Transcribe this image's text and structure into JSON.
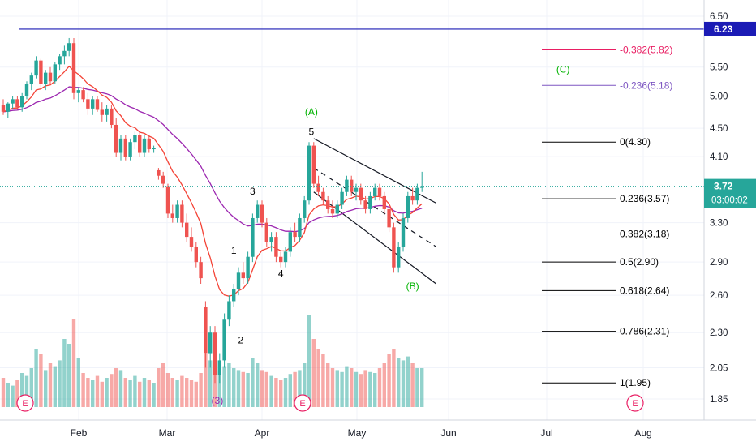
{
  "chart_data": {
    "type": "candlestick",
    "price_axis": {
      "ticks": [
        "6.50",
        "5.50",
        "5.00",
        "4.50",
        "4.10",
        "3.30",
        "2.90",
        "2.60",
        "2.30",
        "2.05",
        "1.85"
      ],
      "scale": "log"
    },
    "time_axis": {
      "ticks": [
        "Feb",
        "Mar",
        "Apr",
        "May",
        "Jun",
        "Jul",
        "Aug"
      ]
    },
    "last_price": {
      "value": "3.72",
      "countdown": "03:00:02",
      "color": "#26a69a"
    },
    "resistance_line": {
      "value": "6.23",
      "color": "#1b1bb5"
    },
    "candles": [
      [
        4.85,
        4.95,
        4.7,
        4.75
      ],
      [
        4.75,
        4.9,
        4.65,
        4.88
      ],
      [
        4.88,
        5.0,
        4.8,
        4.95
      ],
      [
        4.95,
        5.0,
        4.78,
        4.82
      ],
      [
        4.82,
        5.05,
        4.75,
        5.0
      ],
      [
        5.0,
        5.25,
        4.95,
        5.2
      ],
      [
        5.2,
        5.4,
        5.1,
        5.35
      ],
      [
        5.35,
        5.7,
        5.3,
        5.62
      ],
      [
        5.62,
        5.65,
        5.15,
        5.2
      ],
      [
        5.2,
        5.45,
        5.1,
        5.4
      ],
      [
        5.4,
        5.5,
        5.2,
        5.25
      ],
      [
        5.25,
        5.6,
        5.2,
        5.55
      ],
      [
        5.55,
        5.75,
        5.45,
        5.7
      ],
      [
        5.7,
        5.9,
        5.55,
        5.8
      ],
      [
        5.8,
        6.05,
        5.7,
        5.95
      ],
      [
        5.95,
        6.05,
        4.95,
        5.05
      ],
      [
        5.05,
        5.15,
        4.9,
        5.1
      ],
      [
        5.1,
        5.15,
        4.9,
        4.95
      ],
      [
        4.95,
        5.05,
        4.7,
        4.8
      ],
      [
        4.8,
        5.0,
        4.7,
        4.95
      ],
      [
        4.95,
        5.0,
        4.75,
        4.78
      ],
      [
        4.78,
        4.9,
        4.6,
        4.7
      ],
      [
        4.7,
        4.85,
        4.6,
        4.8
      ],
      [
        4.8,
        4.85,
        4.5,
        4.55
      ],
      [
        4.55,
        4.65,
        4.1,
        4.15
      ],
      [
        4.15,
        4.4,
        4.05,
        4.35
      ],
      [
        4.35,
        4.4,
        4.05,
        4.1
      ],
      [
        4.1,
        4.35,
        4.05,
        4.3
      ],
      [
        4.3,
        4.45,
        4.2,
        4.4
      ],
      [
        4.4,
        4.45,
        4.1,
        4.15
      ],
      [
        4.15,
        4.4,
        4.1,
        4.35
      ],
      [
        4.35,
        4.4,
        4.15,
        4.2
      ],
      [
        4.2,
        4.25,
        4.15,
        4.22
      ],
      [
        3.92,
        3.95,
        3.8,
        3.85
      ],
      [
        3.85,
        3.9,
        3.7,
        3.75
      ],
      [
        3.72,
        3.75,
        3.35,
        3.4
      ],
      [
        3.4,
        3.5,
        3.3,
        3.35
      ],
      [
        3.35,
        3.55,
        3.3,
        3.5
      ],
      [
        3.5,
        3.55,
        3.25,
        3.3
      ],
      [
        3.3,
        3.4,
        3.1,
        3.15
      ],
      [
        3.15,
        3.25,
        3.0,
        3.05
      ],
      [
        3.05,
        3.1,
        2.85,
        2.9
      ],
      [
        2.9,
        2.95,
        2.7,
        2.75
      ],
      [
        2.5,
        2.55,
        2.05,
        2.15
      ],
      [
        2.15,
        2.35,
        2.05,
        2.3
      ],
      [
        2.3,
        2.35,
        1.95,
        2.0
      ],
      [
        2.0,
        2.15,
        1.95,
        2.1
      ],
      [
        2.1,
        2.45,
        2.05,
        2.4
      ],
      [
        2.4,
        2.6,
        2.35,
        2.55
      ],
      [
        2.55,
        2.7,
        2.5,
        2.65
      ],
      [
        2.65,
        2.85,
        2.6,
        2.8
      ],
      [
        2.8,
        2.9,
        2.7,
        2.75
      ],
      [
        2.75,
        3.0,
        2.7,
        2.95
      ],
      [
        2.95,
        3.4,
        2.9,
        3.35
      ],
      [
        3.35,
        3.55,
        3.3,
        3.5
      ],
      [
        3.5,
        3.55,
        3.25,
        3.3
      ],
      [
        3.3,
        3.35,
        3.05,
        3.1
      ],
      [
        3.1,
        3.2,
        3.0,
        3.15
      ],
      [
        3.15,
        3.2,
        2.9,
        2.95
      ],
      [
        2.95,
        3.0,
        2.85,
        2.9
      ],
      [
        2.9,
        3.05,
        2.85,
        3.0
      ],
      [
        3.0,
        3.25,
        2.95,
        3.2
      ],
      [
        3.2,
        3.3,
        3.1,
        3.15
      ],
      [
        3.15,
        3.4,
        3.1,
        3.35
      ],
      [
        3.35,
        3.6,
        3.3,
        3.55
      ],
      [
        3.55,
        4.3,
        3.5,
        4.25
      ],
      [
        4.25,
        4.3,
        3.7,
        3.75
      ],
      [
        3.75,
        3.85,
        3.6,
        3.65
      ],
      [
        3.65,
        3.7,
        3.5,
        3.55
      ],
      [
        3.55,
        3.6,
        3.4,
        3.45
      ],
      [
        3.45,
        3.55,
        3.35,
        3.4
      ],
      [
        3.4,
        3.55,
        3.35,
        3.5
      ],
      [
        3.5,
        3.7,
        3.45,
        3.65
      ],
      [
        3.65,
        3.85,
        3.6,
        3.8
      ],
      [
        3.8,
        3.85,
        3.6,
        3.65
      ],
      [
        3.65,
        3.75,
        3.55,
        3.7
      ],
      [
        3.7,
        3.75,
        3.5,
        3.55
      ],
      [
        3.55,
        3.6,
        3.4,
        3.45
      ],
      [
        3.45,
        3.65,
        3.4,
        3.6
      ],
      [
        3.6,
        3.75,
        3.55,
        3.7
      ],
      [
        3.7,
        3.75,
        3.55,
        3.6
      ],
      [
        3.6,
        3.65,
        3.4,
        3.45
      ],
      [
        3.45,
        3.5,
        3.2,
        3.25
      ],
      [
        3.25,
        3.3,
        2.8,
        2.85
      ],
      [
        2.85,
        3.1,
        2.8,
        3.05
      ],
      [
        3.05,
        3.4,
        3.0,
        3.35
      ],
      [
        3.35,
        3.65,
        3.3,
        3.6
      ],
      [
        3.6,
        3.7,
        3.5,
        3.55
      ],
      [
        3.55,
        3.75,
        3.5,
        3.7
      ],
      [
        3.7,
        3.9,
        3.65,
        3.72
      ]
    ],
    "ema_slow": {
      "name": "",
      "color": "#9c27b0"
    },
    "ema_fast": {
      "name": "",
      "color": "#f44336"
    },
    "channel": {
      "upper": [
        [
          66,
          4.35
        ],
        [
          92,
          3.52
        ]
      ],
      "lower": [
        [
          66,
          3.65
        ],
        [
          92,
          2.7
        ]
      ],
      "mid": [
        [
          66,
          3.95
        ],
        [
          92,
          3.05
        ]
      ]
    },
    "wave_labels": [
      {
        "text": "(A)",
        "candle": 65.5,
        "price": 4.7,
        "color": "#00b300"
      },
      {
        "text": "5",
        "candle": 65.5,
        "price": 4.4,
        "color": "#000000"
      },
      {
        "text": "3",
        "candle": 53,
        "price": 3.62,
        "color": "#000000"
      },
      {
        "text": "1",
        "candle": 49,
        "price": 2.98,
        "color": "#000000"
      },
      {
        "text": "4",
        "candle": 59,
        "price": 2.76,
        "color": "#000000"
      },
      {
        "text": "2",
        "candle": 50.5,
        "price": 2.22,
        "color": "#000000"
      },
      {
        "text": "(3)",
        "candle": 45.5,
        "price": 1.82,
        "color": "#9c27b0"
      },
      {
        "text": "(B)",
        "candle": 87,
        "price": 2.65,
        "color": "#00b300"
      },
      {
        "text": "(C)",
        "candle": 119,
        "price": 5.4,
        "color": "#00b300"
      }
    ],
    "fib_levels": [
      {
        "label": "-0.382(5.82)",
        "value": 5.82,
        "color": "#e91e63"
      },
      {
        "label": "-0.236(5.18)",
        "value": 5.18,
        "color": "#7e57c2"
      },
      {
        "label": "0(4.30)",
        "value": 4.3,
        "color": "#000000"
      },
      {
        "label": "0.236(3.57)",
        "value": 3.57,
        "color": "#000000"
      },
      {
        "label": "0.382(3.18)",
        "value": 3.18,
        "color": "#000000"
      },
      {
        "label": "0.5(2.90)",
        "value": 2.9,
        "color": "#000000"
      },
      {
        "label": "0.618(2.64)",
        "value": 2.64,
        "color": "#000000"
      },
      {
        "label": "0.786(2.31)",
        "value": 2.31,
        "color": "#000000"
      },
      {
        "label": "1(1.95)",
        "value": 1.95,
        "color": "#000000"
      }
    ],
    "volume": [
      30,
      25,
      22,
      28,
      35,
      32,
      40,
      60,
      55,
      38,
      45,
      42,
      48,
      70,
      65,
      90,
      50,
      35,
      30,
      28,
      32,
      26,
      30,
      34,
      40,
      38,
      30,
      28,
      32,
      26,
      30,
      28,
      25,
      40,
      45,
      35,
      30,
      28,
      32,
      30,
      28,
      26,
      35,
      55,
      48,
      40,
      38,
      42,
      45,
      40,
      38,
      36,
      35,
      50,
      45,
      38,
      36,
      32,
      30,
      28,
      30,
      34,
      36,
      38,
      45,
      95,
      70,
      60,
      55,
      45,
      40,
      38,
      36,
      42,
      40,
      36,
      34,
      38,
      36,
      35,
      40,
      45,
      55,
      60,
      50,
      48,
      52,
      45,
      40,
      40
    ],
    "earnings_markers": [
      {
        "label": "E"
      },
      {
        "label": "E"
      },
      {
        "label": "E"
      }
    ],
    "colors": {
      "up": "#26a69a",
      "down": "#ef5350"
    }
  }
}
